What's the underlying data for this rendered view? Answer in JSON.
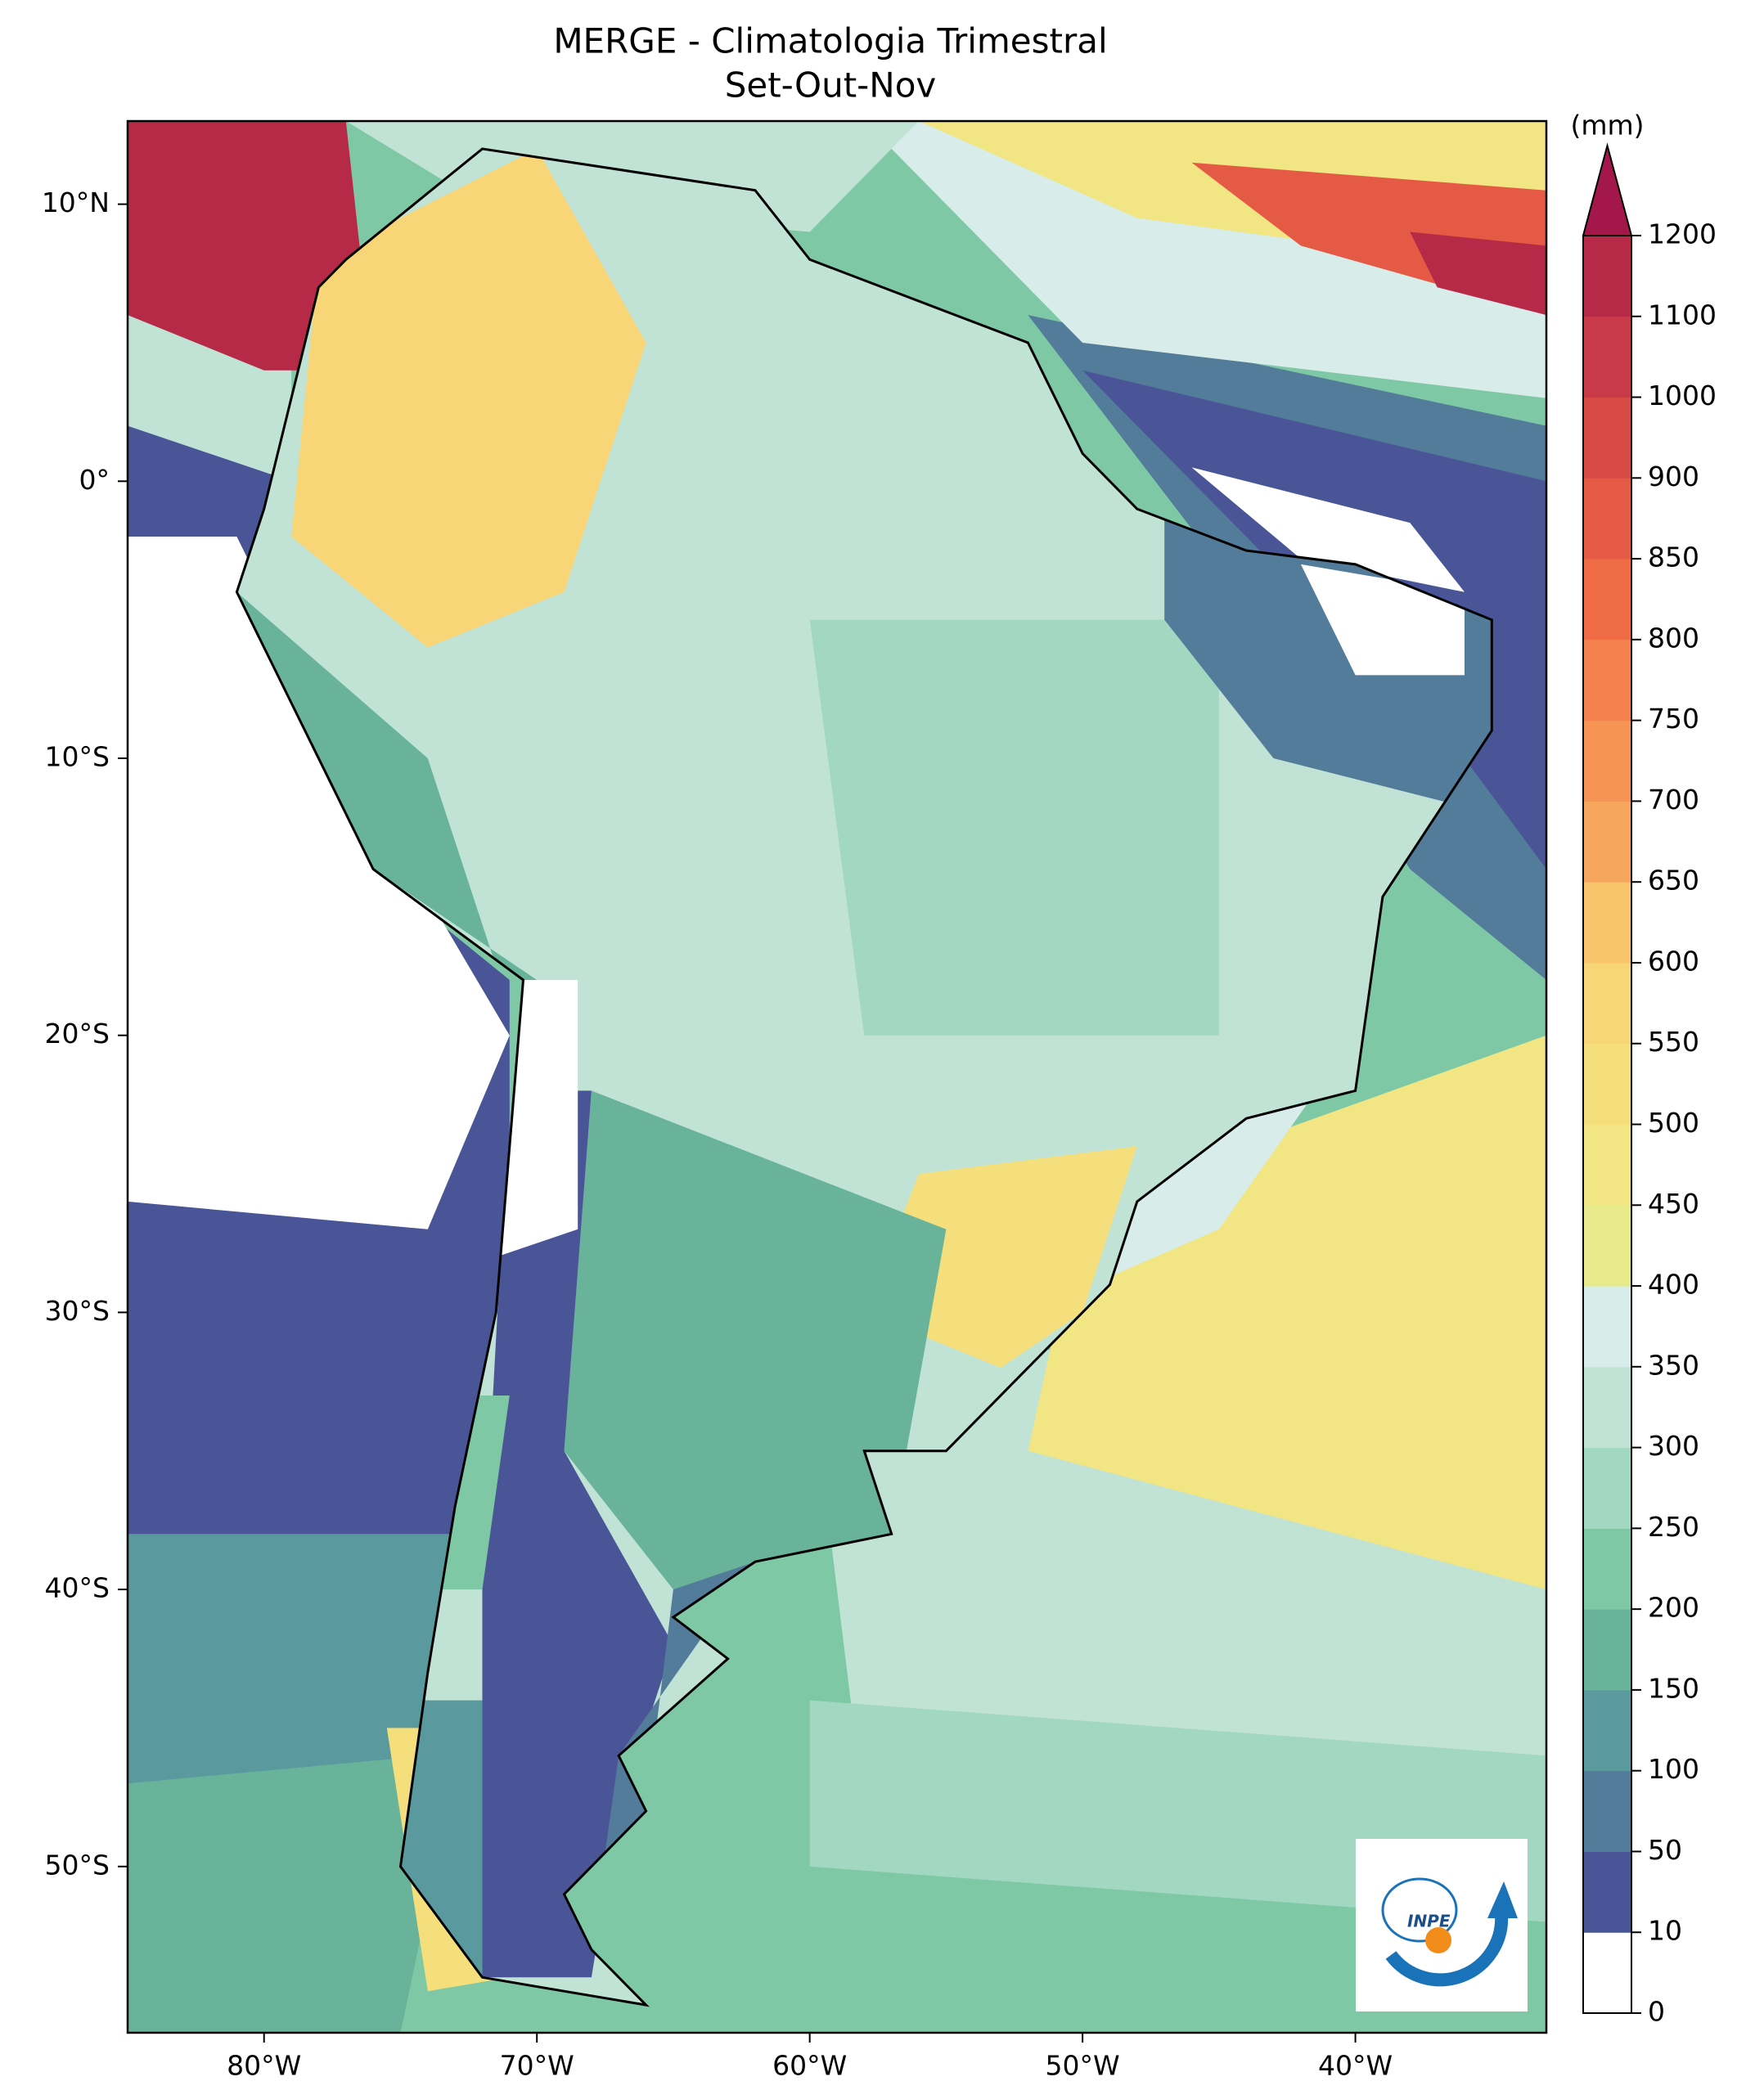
{
  "map": {
    "title": "MERGE - Climatologia Trimestral",
    "subtitle": "Set-Out-Nov",
    "xlim": [
      -85,
      -33
    ],
    "ylim": [
      -56,
      13
    ],
    "xticks": [
      {
        "value": -80,
        "label": "80°W"
      },
      {
        "value": -70,
        "label": "70°W"
      },
      {
        "value": -60,
        "label": "60°W"
      },
      {
        "value": -50,
        "label": "50°W"
      },
      {
        "value": -40,
        "label": "40°W"
      }
    ],
    "yticks": [
      {
        "value": 10,
        "label": "10°N"
      },
      {
        "value": 0,
        "label": "0°"
      },
      {
        "value": -10,
        "label": "10°S"
      },
      {
        "value": -20,
        "label": "20°S"
      },
      {
        "value": -30,
        "label": "30°S"
      },
      {
        "value": -40,
        "label": "40°S"
      },
      {
        "value": -50,
        "label": "50°S"
      }
    ],
    "colorbar": {
      "label": "(mm)",
      "levels": [
        0,
        10,
        50,
        100,
        150,
        200,
        250,
        300,
        350,
        400,
        450,
        500,
        550,
        600,
        650,
        700,
        750,
        800,
        850,
        900,
        1000,
        1100,
        1200
      ],
      "colors": [
        "#ffffff",
        "#4a5597",
        "#537b9a",
        "#5a9a9e",
        "#68b39a",
        "#7ec8a5",
        "#a2d7c2",
        "#c0e3d6",
        "#d8ece9",
        "#e8e98a",
        "#f1e584",
        "#f5df7c",
        "#f8d677",
        "#f8c56c",
        "#f7a65e",
        "#f59455",
        "#f3824e",
        "#ef6c46",
        "#e55a45",
        "#d84a46",
        "#c93a48",
        "#b62a48"
      ],
      "extend_color": "#a3174a"
    },
    "logo": "INPE"
  }
}
